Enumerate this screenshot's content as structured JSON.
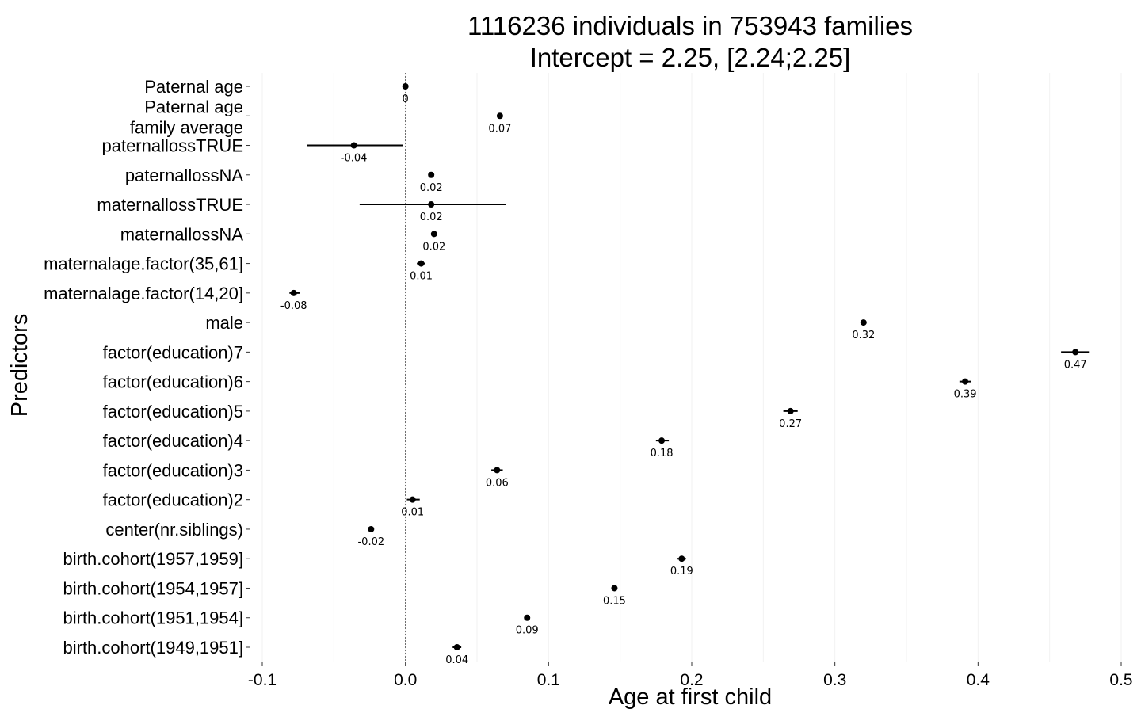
{
  "chart_data": {
    "type": "scatter",
    "title": [
      "1116236 individuals in 753943 families",
      "Intercept = 2.25, [2.24;2.25]"
    ],
    "xlabel": "Age at first child",
    "ylabel": "Predictors",
    "xlim": [
      -0.1,
      0.5
    ],
    "x_ticks": [
      "-0.1",
      "0.0",
      "0.1",
      "0.2",
      "0.3",
      "0.4",
      "0.5"
    ],
    "x_tick_values": [
      -0.1,
      0,
      0.1,
      0.2,
      0.3,
      0.4,
      0.5
    ],
    "reference_line_x": 0,
    "grid": true,
    "points": [
      {
        "label": [
          "Paternal age"
        ],
        "estimate": 0.0,
        "ci_low": -0.002,
        "ci_high": 0.002,
        "value_label": "0"
      },
      {
        "label": [
          "Paternal age",
          "family average"
        ],
        "estimate": 0.066,
        "ci_low": 0.064,
        "ci_high": 0.068,
        "value_label": "0.07"
      },
      {
        "label": [
          "paternallossTRUE"
        ],
        "estimate": -0.036,
        "ci_low": -0.069,
        "ci_high": -0.002,
        "value_label": "-0.04"
      },
      {
        "label": [
          "paternallossNA"
        ],
        "estimate": 0.018,
        "ci_low": 0.016,
        "ci_high": 0.02,
        "value_label": "0.02"
      },
      {
        "label": [
          "maternallossTRUE"
        ],
        "estimate": 0.018,
        "ci_low": -0.032,
        "ci_high": 0.07,
        "value_label": "0.02"
      },
      {
        "label": [
          "maternallossNA"
        ],
        "estimate": 0.02,
        "ci_low": 0.018,
        "ci_high": 0.022,
        "value_label": "0.02"
      },
      {
        "label": [
          "maternalage.factor(35,61]"
        ],
        "estimate": 0.011,
        "ci_low": 0.008,
        "ci_high": 0.014,
        "value_label": "0.01"
      },
      {
        "label": [
          "maternalage.factor(14,20]"
        ],
        "estimate": -0.078,
        "ci_low": -0.081,
        "ci_high": -0.074,
        "value_label": "-0.08"
      },
      {
        "label": [
          "male"
        ],
        "estimate": 0.32,
        "ci_low": 0.318,
        "ci_high": 0.322,
        "value_label": "0.32"
      },
      {
        "label": [
          "factor(education)7"
        ],
        "estimate": 0.468,
        "ci_low": 0.458,
        "ci_high": 0.478,
        "value_label": "0.47"
      },
      {
        "label": [
          "factor(education)6"
        ],
        "estimate": 0.391,
        "ci_low": 0.387,
        "ci_high": 0.395,
        "value_label": "0.39"
      },
      {
        "label": [
          "factor(education)5"
        ],
        "estimate": 0.269,
        "ci_low": 0.264,
        "ci_high": 0.274,
        "value_label": "0.27"
      },
      {
        "label": [
          "factor(education)4"
        ],
        "estimate": 0.179,
        "ci_low": 0.175,
        "ci_high": 0.184,
        "value_label": "0.18"
      },
      {
        "label": [
          "factor(education)3"
        ],
        "estimate": 0.064,
        "ci_low": 0.06,
        "ci_high": 0.068,
        "value_label": "0.06"
      },
      {
        "label": [
          "factor(education)2"
        ],
        "estimate": 0.005,
        "ci_low": 0.001,
        "ci_high": 0.01,
        "value_label": "0.01"
      },
      {
        "label": [
          "center(nr.siblings)"
        ],
        "estimate": -0.024,
        "ci_low": -0.025,
        "ci_high": -0.023,
        "value_label": "-0.02"
      },
      {
        "label": [
          "birth.cohort(1957,1959]"
        ],
        "estimate": 0.193,
        "ci_low": 0.19,
        "ci_high": 0.196,
        "value_label": "0.19"
      },
      {
        "label": [
          "birth.cohort(1954,1957]"
        ],
        "estimate": 0.146,
        "ci_low": 0.144,
        "ci_high": 0.148,
        "value_label": "0.15"
      },
      {
        "label": [
          "birth.cohort(1951,1954]"
        ],
        "estimate": 0.085,
        "ci_low": 0.083,
        "ci_high": 0.087,
        "value_label": "0.09"
      },
      {
        "label": [
          "birth.cohort(1949,1951]"
        ],
        "estimate": 0.036,
        "ci_low": 0.033,
        "ci_high": 0.039,
        "value_label": "0.04"
      }
    ]
  }
}
